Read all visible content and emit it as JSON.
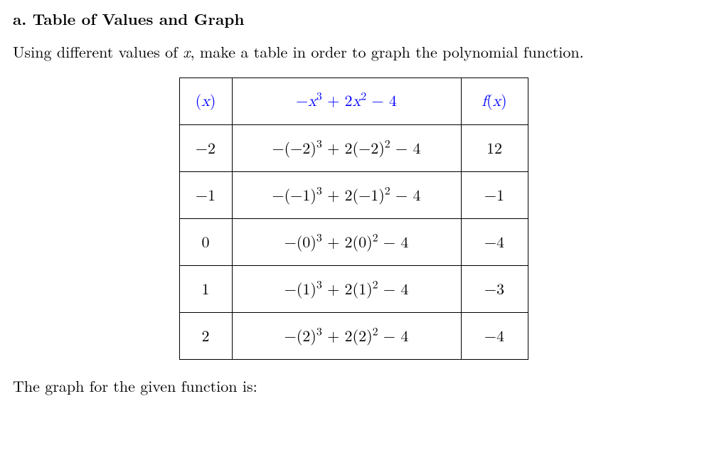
{
  "heading": {
    "prefix": "a.",
    "title": "Table of Values and Graph"
  },
  "intro": {
    "part1": "Using different values of ",
    "var": "x",
    "part2": ", make a table in order to graph the polynomial function."
  },
  "table": {
    "header": {
      "col_x": "(x)",
      "col_expr": "−x³ + 2x² − 4",
      "col_fx": "f(x)"
    },
    "colors": {
      "header_text": "#0000ff",
      "border": "#000000",
      "text": "#000000"
    },
    "rows": [
      {
        "x": "−2",
        "expr": "−(−2)³ + 2(−2)² − 4",
        "fx": "12"
      },
      {
        "x": "−1",
        "expr": "−(−1)³ + 2(−1)² − 4",
        "fx": "−1"
      },
      {
        "x": "0",
        "expr": "−(0)³ + 2(0)² − 4",
        "fx": "−4"
      },
      {
        "x": "1",
        "expr": "−(1)³ + 2(1)² − 4",
        "fx": "−3"
      },
      {
        "x": "2",
        "expr": "−(2)³ + 2(2)² − 4",
        "fx": "−4"
      }
    ]
  },
  "closing": "The graph for the given function is:"
}
